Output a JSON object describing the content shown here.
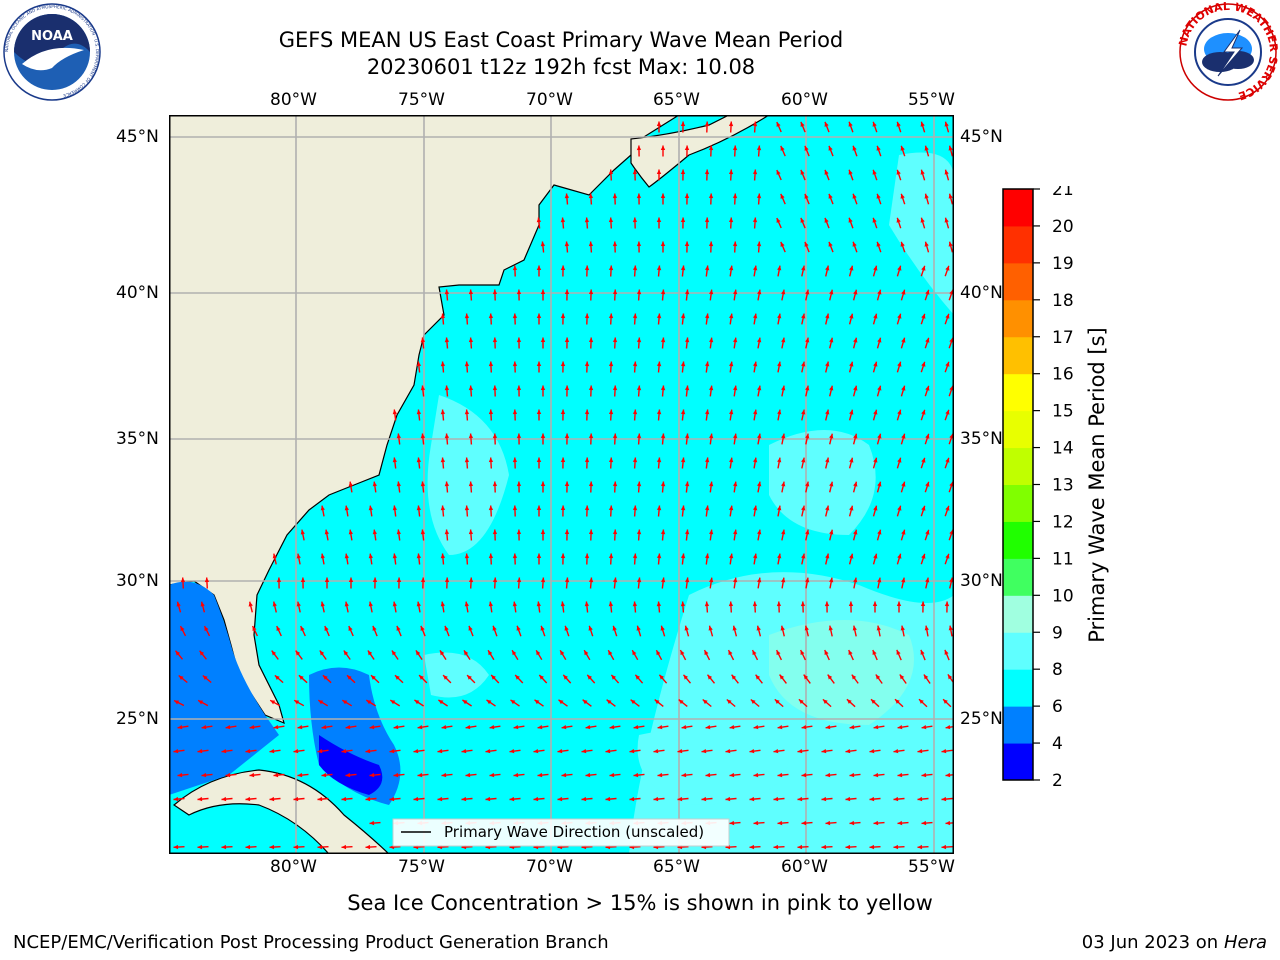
{
  "header": {
    "title_line1": "GEFS MEAN US East Coast Primary Wave Mean Period",
    "title_line2": "20230601 t12z 192h fcst   Max: 10.08"
  },
  "logos": {
    "noara_text": "NOAA",
    "noaa_ring": "NATIONAL OCEANIC AND ATMOSPHERIC ADMINISTRATION · U.S. DEPARTMENT OF COMMERCE",
    "nws_ring": "NATIONAL WEATHER SERVICE"
  },
  "map": {
    "lon_labels": [
      "80°W",
      "75°W",
      "70°W",
      "65°W",
      "60°W",
      "55°W"
    ],
    "lat_labels": [
      "45°N",
      "40°N",
      "35°N",
      "30°N",
      "25°N"
    ],
    "legend_label": "Primary Wave Direction (unscaled)",
    "colors": {
      "ocean": "#00ffff",
      "land": "#efeedb",
      "arrow": "#ff0000",
      "grid": "#b0b0b0"
    }
  },
  "colorbar": {
    "label": "Primary Wave Mean Period [s]",
    "ticks": [
      "2",
      "4",
      "6",
      "8",
      "9",
      "10",
      "11",
      "12",
      "13",
      "14",
      "15",
      "16",
      "17",
      "18",
      "19",
      "20",
      "21"
    ],
    "colors": [
      "#0000ff",
      "#0080ff",
      "#00ffff",
      "#5fffff",
      "#a0ffe0",
      "#40ff60",
      "#20ff00",
      "#80ff00",
      "#c0ff00",
      "#e8ff00",
      "#ffff00",
      "#ffc000",
      "#ff9000",
      "#ff6000",
      "#ff3000",
      "#ff0000"
    ]
  },
  "subtitle": "Sea Ice Concentration > 15% is shown in pink to yellow",
  "footer": {
    "left": "NCEP/EMC/Verification Post Processing Product Generation Branch",
    "date": "03 Jun 2023 on",
    "host": "Hera"
  }
}
